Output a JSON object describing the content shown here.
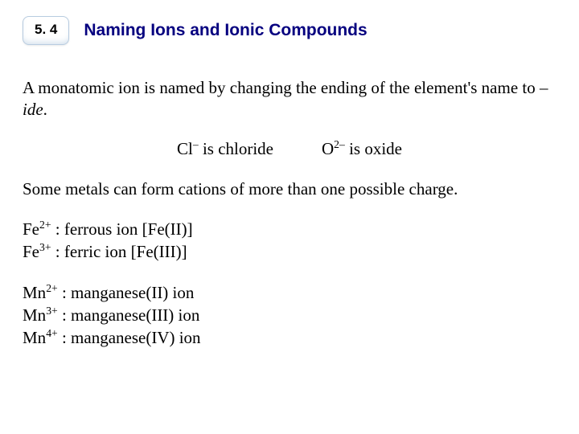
{
  "header": {
    "section_number": "5. 4",
    "title": "Naming Ions and Ionic Compounds"
  },
  "intro": {
    "lead": "A monatomic ion is named by changing the ending of the element's name to ",
    "suffix": "–ide",
    "period": "."
  },
  "examples": {
    "cl": {
      "symbol": "Cl",
      "charge": "–",
      "label": " is chloride"
    },
    "o": {
      "symbol": "O",
      "charge": "2–",
      "label": " is oxide"
    }
  },
  "cations_intro": "Some metals can form cations of more than one possible charge.",
  "iron": {
    "fe2": {
      "symbol": "Fe",
      "charge": "2+",
      "desc": " : ferrous ion [Fe(II)]"
    },
    "fe3": {
      "symbol": "Fe",
      "charge": "3+",
      "desc": " : ferric ion [Fe(III)]"
    }
  },
  "manganese": {
    "mn2": {
      "symbol": "Mn",
      "charge": "2+",
      "desc": " : manganese(II) ion"
    },
    "mn3": {
      "symbol": "Mn",
      "charge": "3+",
      "desc": " : manganese(III) ion"
    },
    "mn4": {
      "symbol": "Mn",
      "charge": "4+",
      "desc": " : manganese(IV) ion"
    }
  },
  "colors": {
    "title_color": "#05007f",
    "text_color": "#000000",
    "background": "#ffffff",
    "badge_border": "#b8cce0"
  },
  "typography": {
    "title_font": "Arial",
    "title_size_pt": 16,
    "body_font": "Times New Roman",
    "body_size_pt": 16
  }
}
